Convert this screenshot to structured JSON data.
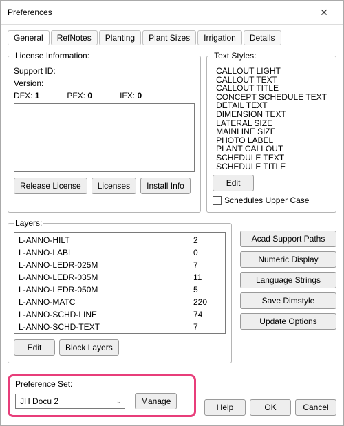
{
  "window": {
    "title": "Preferences"
  },
  "tabs": [
    {
      "label": "General",
      "active": true
    },
    {
      "label": "RefNotes",
      "active": false
    },
    {
      "label": "Planting",
      "active": false
    },
    {
      "label": "Plant Sizes",
      "active": false
    },
    {
      "label": "Irrigation",
      "active": false
    },
    {
      "label": "Details",
      "active": false
    }
  ],
  "license": {
    "legend": "License Information:",
    "support_id_label": "Support ID:",
    "version_label": "Version:",
    "dfx_label": "DFX:",
    "dfx_value": "1",
    "pfx_label": "PFX:",
    "pfx_value": "0",
    "ifx_label": "IFX:",
    "ifx_value": "0",
    "release_btn": "Release License",
    "licenses_btn": "Licenses",
    "install_btn": "Install Info"
  },
  "textstyles": {
    "legend": "Text Styles:",
    "items": [
      "CALLOUT LIGHT",
      "CALLOUT TEXT",
      "CALLOUT TITLE",
      "CONCEPT SCHEDULE TEXT",
      "DETAIL TEXT",
      "DIMENSION TEXT",
      "LATERAL SIZE",
      "MAINLINE SIZE",
      "PHOTO LABEL",
      "PLANT CALLOUT",
      "SCHEDULE TEXT",
      "SCHEDULE TITLE"
    ],
    "edit_btn": "Edit",
    "upper_label": "Schedules Upper Case"
  },
  "layers": {
    "legend": "Layers:",
    "rows": [
      {
        "name": "L-ANNO-HILT",
        "val": "2"
      },
      {
        "name": "L-ANNO-LABL",
        "val": "0"
      },
      {
        "name": "L-ANNO-LEDR-025M",
        "val": "7"
      },
      {
        "name": "L-ANNO-LEDR-035M",
        "val": "11"
      },
      {
        "name": "L-ANNO-LEDR-050M",
        "val": "5"
      },
      {
        "name": "L-ANNO-MATC",
        "val": "220"
      },
      {
        "name": "L-ANNO-SCHD-LINE",
        "val": "74"
      },
      {
        "name": "L-ANNO-SCHD-TEXT",
        "val": "7"
      }
    ],
    "edit_btn": "Edit",
    "block_btn": "Block Layers"
  },
  "right_buttons": [
    "Acad Support Paths",
    "Numeric Display",
    "Language Strings",
    "Save Dimstyle",
    "Update Options"
  ],
  "prefset": {
    "legend": "Preference Set:",
    "selected": "JH Docu 2",
    "manage_btn": "Manage"
  },
  "footer": {
    "help": "Help",
    "ok": "OK",
    "cancel": "Cancel"
  }
}
